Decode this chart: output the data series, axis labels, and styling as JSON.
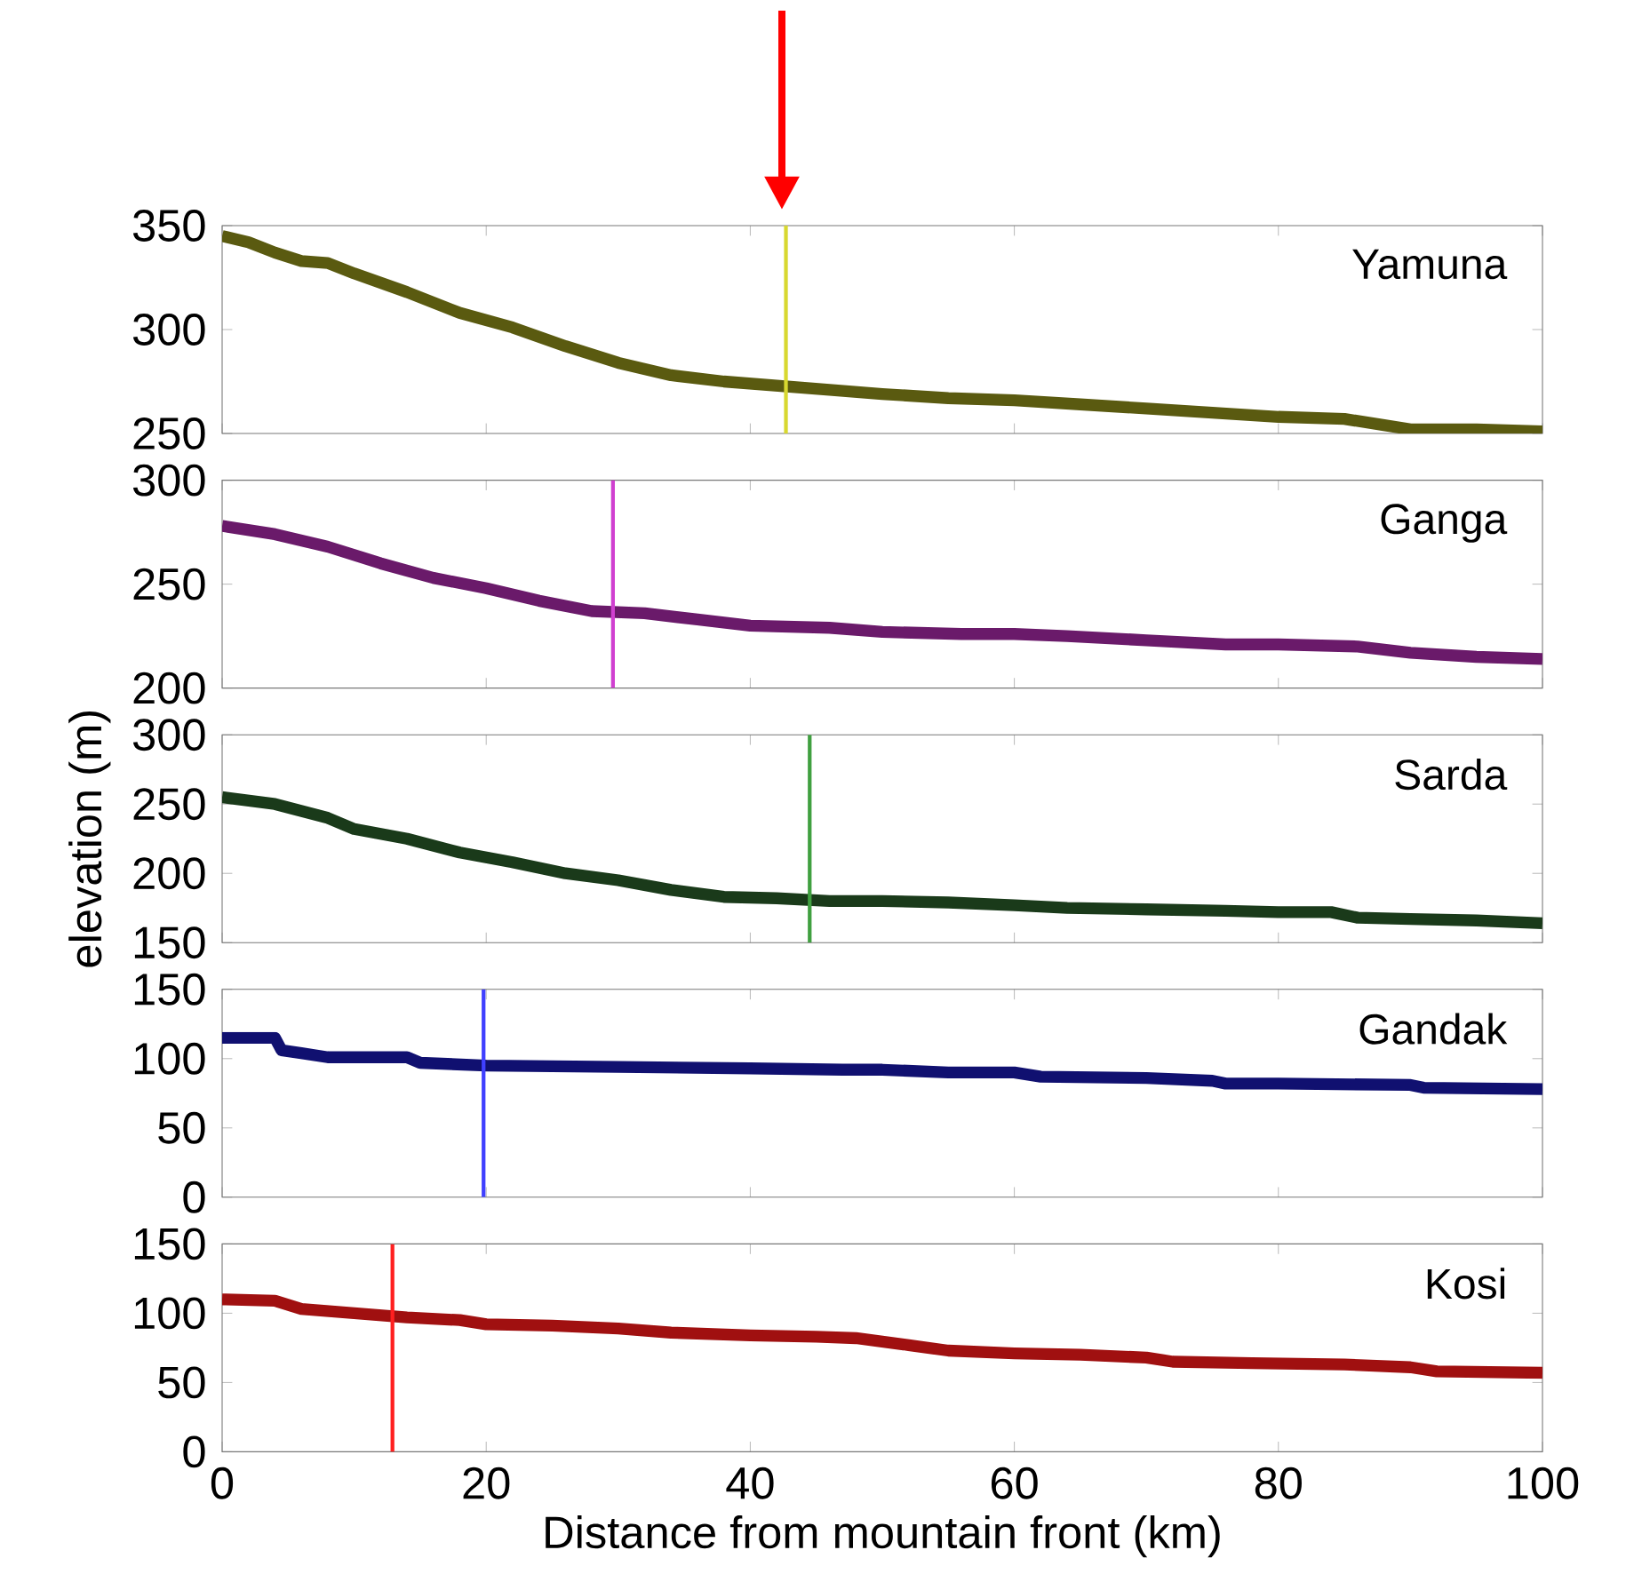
{
  "chart_data": [
    {
      "type": "line",
      "xlim": [
        0,
        100
      ],
      "ylim": [
        250,
        350
      ],
      "xticks": [
        0,
        20,
        40,
        60,
        80,
        100
      ],
      "yticks": [
        250,
        300,
        350
      ],
      "tick_labels": "y",
      "series": [
        {
          "name": "Yamuna",
          "color": "#5a5a10",
          "x": [
            0,
            2,
            4,
            6,
            8,
            10,
            14,
            18,
            22,
            26,
            30,
            34,
            38,
            42,
            46,
            50,
            55,
            60,
            65,
            70,
            75,
            80,
            85,
            88,
            90,
            95,
            100
          ],
          "values": [
            345,
            342,
            337,
            333,
            332,
            327,
            318,
            308,
            301,
            292,
            284,
            278,
            275,
            273,
            271,
            269,
            267,
            266,
            264,
            262,
            260,
            258,
            257,
            254,
            252,
            252,
            251
          ]
        }
      ],
      "ref_lines": [
        {
          "axis": "x",
          "value": 42.7,
          "color": "#d8d830"
        }
      ]
    },
    {
      "type": "line",
      "xlim": [
        0,
        100
      ],
      "ylim": [
        200,
        300
      ],
      "xticks": [
        0,
        20,
        40,
        60,
        80,
        100
      ],
      "yticks": [
        200,
        250,
        300
      ],
      "tick_labels": "y",
      "series": [
        {
          "name": "Ganga",
          "color": "#6a1a6a",
          "x": [
            0,
            4,
            8,
            12,
            16,
            20,
            24,
            28,
            32,
            36,
            40,
            46,
            50,
            56,
            60,
            64,
            70,
            76,
            80,
            86,
            90,
            95,
            100
          ],
          "values": [
            278,
            274,
            268,
            260,
            253,
            248,
            242,
            237,
            236,
            233,
            230,
            229,
            227,
            226,
            226,
            225,
            223,
            221,
            221,
            220,
            217,
            215,
            214
          ]
        }
      ],
      "ref_lines": [
        {
          "axis": "x",
          "value": 29.6,
          "color": "#d040d0"
        }
      ]
    },
    {
      "type": "line",
      "ylabel": "elevation (m)",
      "xlim": [
        0,
        100
      ],
      "ylim": [
        150,
        300
      ],
      "xticks": [
        0,
        20,
        40,
        60,
        80,
        100
      ],
      "yticks": [
        150,
        200,
        250,
        300
      ],
      "tick_labels": "y",
      "series": [
        {
          "name": "Sarda",
          "color": "#1a3a1a",
          "x": [
            0,
            4,
            6,
            8,
            10,
            14,
            18,
            22,
            26,
            30,
            34,
            38,
            42,
            46,
            50,
            55,
            60,
            64,
            70,
            76,
            80,
            84,
            86,
            90,
            95,
            100
          ],
          "values": [
            255,
            250,
            245,
            240,
            232,
            225,
            215,
            208,
            200,
            195,
            188,
            183,
            182,
            180,
            180,
            179,
            177,
            175,
            174,
            173,
            172,
            172,
            168,
            167,
            166,
            164
          ]
        }
      ],
      "ref_lines": [
        {
          "axis": "x",
          "value": 44.5,
          "color": "#40a040"
        }
      ]
    },
    {
      "type": "line",
      "xlim": [
        0,
        100
      ],
      "ylim": [
        0,
        150
      ],
      "xticks": [
        0,
        20,
        40,
        60,
        80,
        100
      ],
      "yticks": [
        0,
        50,
        100,
        150
      ],
      "tick_labels": "y",
      "series": [
        {
          "name": "Gandak",
          "color": "#101070",
          "x": [
            0,
            4,
            4.5,
            6,
            8,
            14,
            15,
            20,
            30,
            40,
            47,
            50,
            55,
            60,
            62,
            70,
            75,
            76,
            80,
            90,
            91,
            100
          ],
          "values": [
            115,
            115,
            106,
            104,
            101,
            101,
            97,
            95,
            94,
            93,
            92,
            92,
            90,
            90,
            87,
            86,
            84,
            82,
            82,
            81,
            79,
            78
          ]
        }
      ],
      "ref_lines": [
        {
          "axis": "x",
          "value": 19.8,
          "color": "#4040ff"
        }
      ]
    },
    {
      "type": "line",
      "xlabel": "Distance from mountain front (km)",
      "xlim": [
        0,
        100
      ],
      "ylim": [
        0,
        150
      ],
      "xticks": [
        0,
        20,
        40,
        60,
        80,
        100
      ],
      "yticks": [
        0,
        50,
        100,
        150
      ],
      "series": [
        {
          "name": "Kosi",
          "color": "#a01010",
          "x": [
            0,
            4,
            6,
            10,
            14,
            18,
            20,
            25,
            30,
            34,
            40,
            45,
            48,
            52,
            55,
            60,
            65,
            70,
            72,
            78,
            85,
            90,
            92,
            100
          ],
          "values": [
            110,
            109,
            103,
            100,
            97,
            95,
            92,
            91,
            89,
            86,
            84,
            83,
            82,
            77,
            73,
            71,
            70,
            68,
            65,
            64,
            63,
            61,
            58,
            57
          ]
        }
      ],
      "ref_lines": [
        {
          "axis": "x",
          "value": 12.9,
          "color": "#ff2020"
        }
      ]
    }
  ]
}
